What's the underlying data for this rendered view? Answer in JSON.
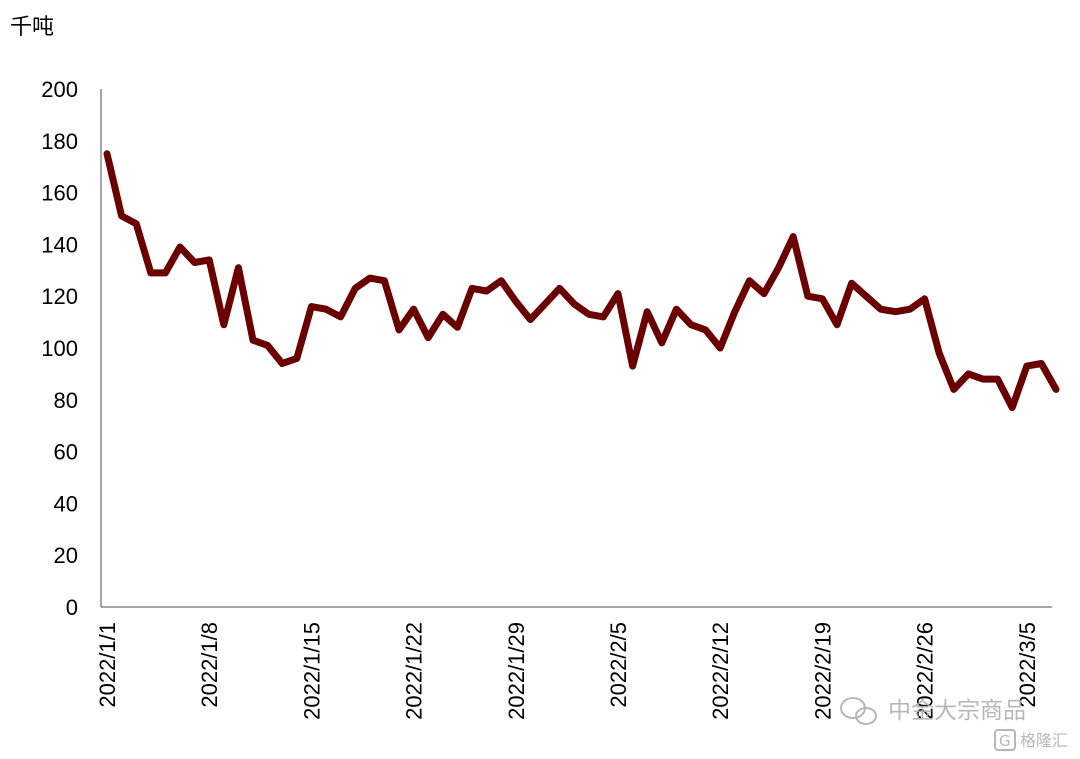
{
  "chart_data": {
    "type": "line",
    "unit_label": "千吨",
    "ylim": [
      0,
      200
    ],
    "y_ticks": [
      0,
      20,
      40,
      60,
      80,
      100,
      120,
      140,
      160,
      180,
      200
    ],
    "x_tick_labels": [
      "2022/1/1",
      "2022/1/8",
      "2022/1/15",
      "2022/1/22",
      "2022/1/29",
      "2022/2/5",
      "2022/2/12",
      "2022/2/19",
      "2022/2/26",
      "2022/3/5"
    ],
    "x_tick_days": [
      0,
      7,
      14,
      21,
      28,
      35,
      42,
      49,
      56,
      63
    ],
    "grid": false,
    "legend": "none",
    "series": [
      {
        "color": "#6b0000",
        "x_days": [
          0,
          1,
          2,
          3,
          4,
          5,
          6,
          7,
          8,
          9,
          10,
          11,
          12,
          13,
          14,
          15,
          16,
          17,
          18,
          19,
          20,
          21,
          22,
          23,
          24,
          25,
          26,
          27,
          28,
          29,
          30,
          31,
          32,
          33,
          34,
          35,
          36,
          37,
          38,
          39,
          40,
          41,
          42,
          43,
          44,
          45,
          46,
          47,
          48,
          49,
          50,
          51,
          52,
          53,
          54,
          55,
          56,
          57,
          58,
          59,
          60,
          61,
          62,
          63,
          64,
          65
        ],
        "values": [
          175,
          151,
          148,
          129,
          129,
          139,
          133,
          134,
          109,
          131,
          103,
          101,
          94,
          96,
          116,
          115,
          112,
          123,
          127,
          126,
          107,
          115,
          104,
          113,
          108,
          123,
          122,
          126,
          118,
          111,
          117,
          123,
          117,
          113,
          112,
          121,
          93,
          114,
          102,
          115,
          109,
          107,
          100,
          114,
          126,
          121,
          131,
          143,
          120,
          119,
          109,
          125,
          120,
          115,
          114,
          115,
          119,
          98,
          84,
          90,
          88,
          88,
          77,
          93,
          94,
          84
        ]
      }
    ]
  },
  "watermark": {
    "text1": "中金大宗商品",
    "text2": "格隆汇",
    "icon": "wechat-icon",
    "logo_icon": "g-logo-icon"
  }
}
